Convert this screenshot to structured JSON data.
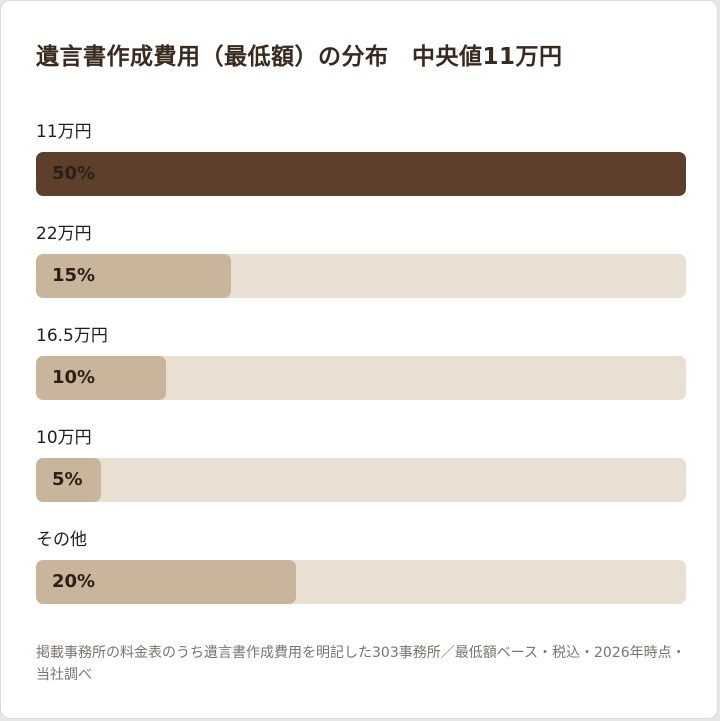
{
  "chart_data": {
    "type": "bar",
    "orientation": "horizontal",
    "title": "遺言書作成費用（最低額）の分布　中央値11万円",
    "categories": [
      "11万円",
      "22万円",
      "16.5万円",
      "10万円",
      "その他"
    ],
    "values": [
      50,
      15,
      10,
      5,
      20
    ],
    "value_labels": [
      "50%",
      "15%",
      "10%",
      "5%",
      "20%"
    ],
    "unit": "%",
    "xlim": [
      0,
      50
    ],
    "grid": false,
    "legend": "none",
    "colors": {
      "highlight": "#5e3f2b",
      "bar": "#c8b59b",
      "track": "#eadfd3"
    },
    "highlight_index": 0,
    "footnote": "掲載事務所の料金表のうち遺言書作成費用を明記した303事務所／最低額ベース・税込・2026年時点・当社調べ"
  }
}
